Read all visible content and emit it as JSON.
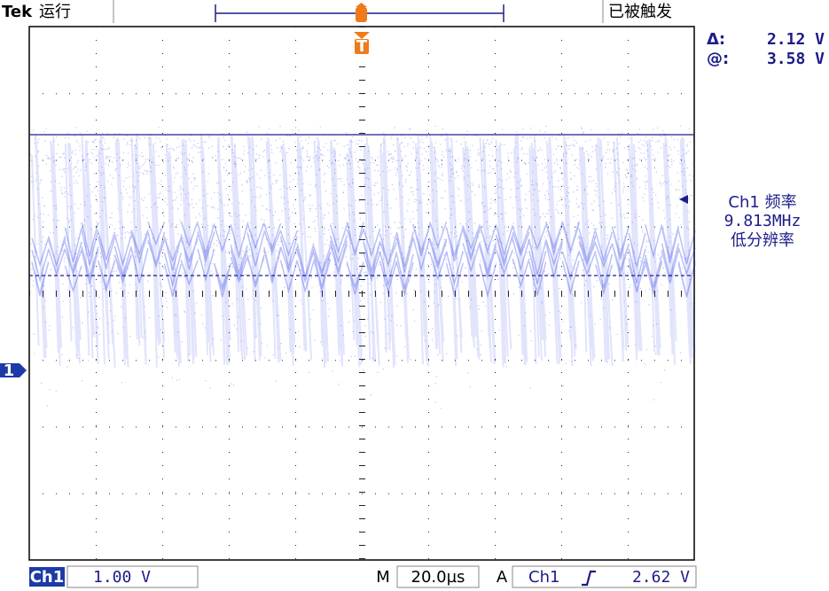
{
  "header": {
    "brand": "Tek",
    "status": "运行",
    "trigger_status": "已被触发"
  },
  "measurements": {
    "delta_label": "Δ:",
    "delta_value": "2.12 V",
    "at_label": "@:",
    "at_value": "3.58 V"
  },
  "frequency": {
    "title": "Ch1 频率",
    "value": "9.813MHz",
    "mode": "低分辨率"
  },
  "markers": {
    "channel": "1",
    "trigger": "T"
  },
  "footer": {
    "channel": "Ch1",
    "scale": "1.00 V",
    "time_prefix": "M",
    "timebase": "20.0µs",
    "trigger_prefix": "A",
    "trigger_source": "Ch1",
    "trigger_level": "2.62 V"
  }
}
